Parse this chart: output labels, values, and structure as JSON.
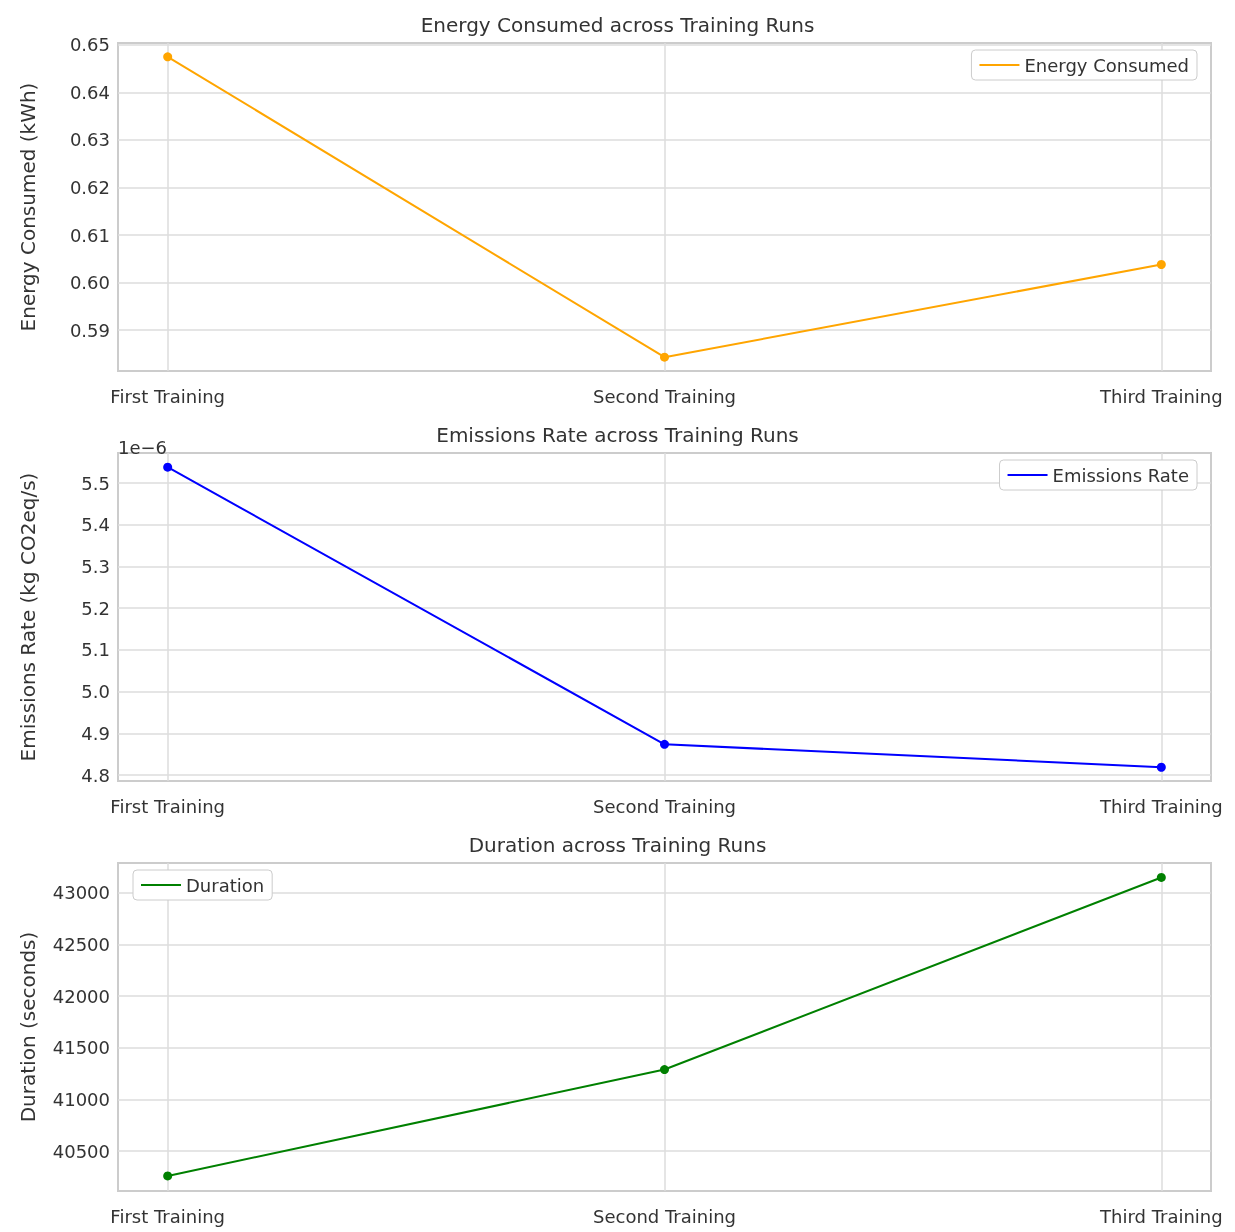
{
  "chart_data": [
    {
      "type": "line",
      "title": "Energy Consumed across Training Runs",
      "ylabel": "Energy Consumed (kWh)",
      "categories": [
        "First Training",
        "Second Training",
        "Third Training"
      ],
      "series": [
        {
          "name": "Energy Consumed",
          "color": "#ffa500",
          "values": [
            0.6475,
            0.5843,
            0.6038
          ]
        }
      ],
      "ylim": [
        0.5814,
        0.6504
      ],
      "yticks": [
        {
          "value": 0.59,
          "label": "0.59"
        },
        {
          "value": 0.6,
          "label": "0.60"
        },
        {
          "value": 0.61,
          "label": "0.61"
        },
        {
          "value": 0.62,
          "label": "0.62"
        },
        {
          "value": 0.63,
          "label": "0.63"
        },
        {
          "value": 0.64,
          "label": "0.64"
        },
        {
          "value": 0.65,
          "label": "0.65"
        }
      ],
      "grid": true,
      "legend": "top right",
      "marker": "circle",
      "line_style": "solid"
    },
    {
      "type": "line",
      "title": "Emissions Rate across Training Runs",
      "ylabel": "Emissions Rate (kg CO2eq/s)",
      "annotations": [
        "1e−6"
      ],
      "categories": [
        "First Training",
        "Second Training",
        "Third Training"
      ],
      "series": [
        {
          "name": "Emissions Rate",
          "color": "#0000ff",
          "values": [
            5.538,
            4.874,
            4.819
          ]
        }
      ],
      "ylim": [
        4.786,
        5.572
      ],
      "yticks": [
        {
          "value": 4.8,
          "label": "4.8"
        },
        {
          "value": 4.9,
          "label": "4.9"
        },
        {
          "value": 5.0,
          "label": "5.0"
        },
        {
          "value": 5.1,
          "label": "5.1"
        },
        {
          "value": 5.2,
          "label": "5.2"
        },
        {
          "value": 5.3,
          "label": "5.3"
        },
        {
          "value": 5.4,
          "label": "5.4"
        },
        {
          "value": 5.5,
          "label": "5.5"
        }
      ],
      "grid": true,
      "legend": "top right",
      "marker": "circle",
      "line_style": "solid"
    },
    {
      "type": "line",
      "title": "Duration across Training Runs",
      "ylabel": "Duration (seconds)",
      "categories": [
        "First Training",
        "Second Training",
        "Third Training"
      ],
      "series": [
        {
          "name": "Duration",
          "color": "#008000",
          "values": [
            40260,
            41290,
            43150
          ]
        }
      ],
      "ylim": [
        40114,
        43290
      ],
      "yticks": [
        40500,
        41000,
        41500,
        42000,
        42500,
        43000
      ],
      "grid": true,
      "legend": "top left",
      "marker": "circle",
      "line_style": "solid"
    }
  ]
}
